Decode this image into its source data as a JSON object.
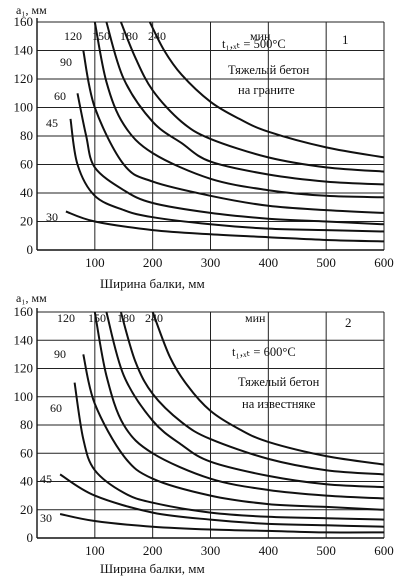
{
  "chart_data": [
    {
      "type": "line",
      "panel_number": "1",
      "ylabel": "a₁, мм",
      "xlabel": "Ширина балки, мм",
      "xlim": [
        0,
        600
      ],
      "ylim": [
        0,
        160
      ],
      "x_ticks": [
        100,
        200,
        300,
        400,
        500,
        600
      ],
      "y_ticks": [
        0,
        20,
        40,
        60,
        80,
        100,
        120,
        140,
        160
      ],
      "grid": true,
      "unit_label": "мин",
      "annotation_temp": "t₁,ₓₜ = 500°C",
      "annotation_text": [
        "Тяжелый бетон",
        "на граните"
      ],
      "series": [
        {
          "name": "30",
          "x": [
            50,
            100,
            200,
            300,
            400,
            500,
            600
          ],
          "y": [
            27,
            20,
            14,
            11,
            9,
            7,
            6
          ]
        },
        {
          "name": "45",
          "x": [
            58,
            70,
            100,
            150,
            200,
            300,
            400,
            500,
            600
          ],
          "y": [
            92,
            60,
            38,
            28,
            23,
            18,
            15,
            14,
            13
          ]
        },
        {
          "name": "60",
          "x": [
            70,
            85,
            100,
            150,
            200,
            300,
            400,
            500,
            600
          ],
          "y": [
            110,
            80,
            58,
            42,
            33,
            26,
            22,
            20,
            18
          ]
        },
        {
          "name": "90",
          "x": [
            80,
            100,
            150,
            200,
            300,
            400,
            500,
            600
          ],
          "y": [
            140,
            100,
            60,
            48,
            38,
            31,
            28,
            26
          ]
        },
        {
          "name": "120",
          "x": [
            100,
            120,
            150,
            200,
            300,
            400,
            500,
            600
          ],
          "y": [
            160,
            118,
            88,
            68,
            50,
            42,
            38,
            37
          ]
        },
        {
          "name": "150",
          "x": [
            120,
            150,
            200,
            250,
            300,
            400,
            500,
            600
          ],
          "y": [
            160,
            120,
            90,
            75,
            62,
            53,
            48,
            46
          ]
        },
        {
          "name": "180",
          "x": [
            145,
            170,
            200,
            250,
            300,
            400,
            500,
            600
          ],
          "y": [
            160,
            135,
            112,
            90,
            78,
            65,
            58,
            55
          ]
        },
        {
          "name": "240",
          "x": [
            195,
            220,
            250,
            300,
            350,
            400,
            500,
            600
          ],
          "y": [
            160,
            140,
            123,
            104,
            92,
            83,
            72,
            65
          ]
        }
      ]
    },
    {
      "type": "line",
      "panel_number": "2",
      "ylabel": "a₁, мм",
      "xlabel": "Ширина балки, мм",
      "xlim": [
        0,
        600
      ],
      "ylim": [
        0,
        160
      ],
      "x_ticks": [
        100,
        200,
        300,
        400,
        500,
        600
      ],
      "y_ticks": [
        0,
        20,
        40,
        60,
        80,
        100,
        120,
        140,
        160
      ],
      "grid": true,
      "unit_label": "мин",
      "annotation_temp": "t₁,ₓₜ = 600°C",
      "annotation_text": [
        "Тяжелый бетон",
        "на известняке"
      ],
      "series": [
        {
          "name": "30",
          "x": [
            40,
            100,
            200,
            300,
            400,
            500,
            600
          ],
          "y": [
            17,
            12,
            8,
            6,
            5,
            4,
            4
          ]
        },
        {
          "name": "45",
          "x": [
            40,
            100,
            200,
            300,
            400,
            500,
            600
          ],
          "y": [
            45,
            30,
            18,
            13,
            10,
            9,
            8
          ]
        },
        {
          "name": "60",
          "x": [
            65,
            80,
            100,
            150,
            200,
            300,
            400,
            500,
            600
          ],
          "y": [
            110,
            70,
            48,
            32,
            25,
            18,
            15,
            14,
            13
          ]
        },
        {
          "name": "90",
          "x": [
            80,
            100,
            150,
            200,
            300,
            400,
            500,
            600
          ],
          "y": [
            130,
            95,
            58,
            42,
            30,
            24,
            22,
            20
          ]
        },
        {
          "name": "120",
          "x": [
            100,
            120,
            150,
            200,
            300,
            400,
            500,
            600
          ],
          "y": [
            160,
            115,
            80,
            60,
            42,
            34,
            30,
            28
          ]
        },
        {
          "name": "150",
          "x": [
            120,
            150,
            200,
            250,
            300,
            400,
            500,
            600
          ],
          "y": [
            160,
            115,
            83,
            66,
            54,
            44,
            38,
            36
          ]
        },
        {
          "name": "180",
          "x": [
            145,
            170,
            200,
            250,
            300,
            400,
            500,
            600
          ],
          "y": [
            160,
            125,
            102,
            82,
            70,
            56,
            48,
            45
          ]
        },
        {
          "name": "240",
          "x": [
            200,
            230,
            260,
            300,
            350,
            400,
            500,
            600
          ],
          "y": [
            160,
            128,
            108,
            90,
            77,
            68,
            58,
            52
          ]
        }
      ]
    }
  ]
}
